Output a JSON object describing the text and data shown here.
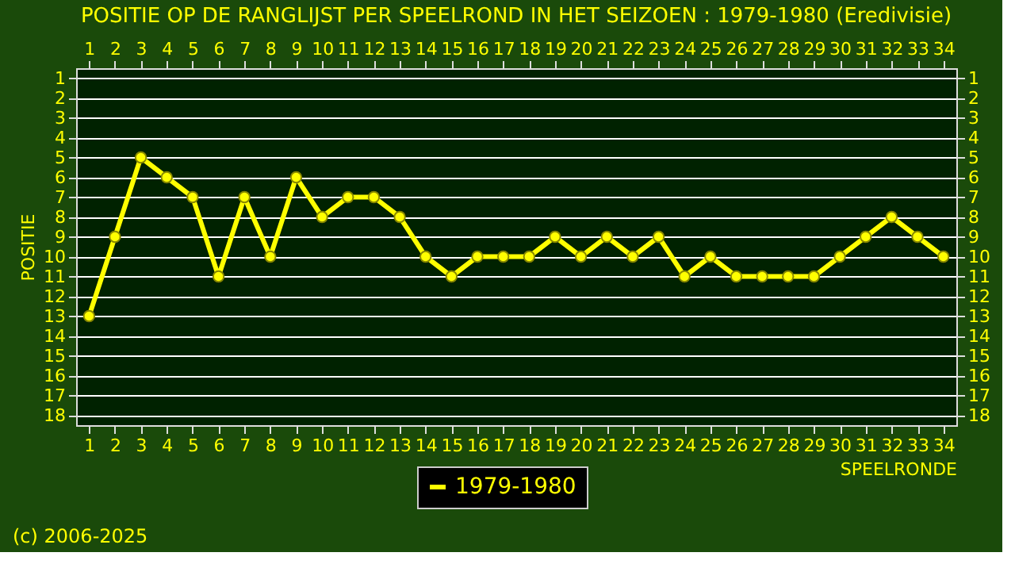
{
  "chart_data": {
    "type": "line",
    "title": "POSITIE OP DE RANGLIJST PER  SPEELROND IN HET SEIZOEN : 1979-1980 (Eredivisie)",
    "xlabel": "SPEELRONDE",
    "ylabel": "POSITIE",
    "x": [
      1,
      2,
      3,
      4,
      5,
      6,
      7,
      8,
      9,
      10,
      11,
      12,
      13,
      14,
      15,
      16,
      17,
      18,
      19,
      20,
      21,
      22,
      23,
      24,
      25,
      26,
      27,
      28,
      29,
      30,
      31,
      32,
      33,
      34
    ],
    "series": [
      {
        "name": "1979-1980",
        "color": "#ffff00",
        "values": [
          13,
          9,
          5,
          6,
          7,
          11,
          7,
          10,
          6,
          8,
          7,
          7,
          8,
          10,
          11,
          10,
          10,
          10,
          9,
          10,
          9,
          10,
          9,
          11,
          10,
          11,
          11,
          11,
          11,
          10,
          9,
          8,
          9,
          10
        ]
      }
    ],
    "xlim": [
      0.5,
      34.5
    ],
    "xticks": [
      1,
      2,
      3,
      4,
      5,
      6,
      7,
      8,
      9,
      10,
      11,
      12,
      13,
      14,
      15,
      16,
      17,
      18,
      19,
      20,
      21,
      22,
      23,
      24,
      25,
      26,
      27,
      28,
      29,
      30,
      31,
      32,
      33,
      34
    ],
    "x2lim": [
      0.5,
      34.5
    ],
    "x2ticks": [
      1,
      2,
      3,
      4,
      5,
      6,
      7,
      8,
      9,
      10,
      11,
      12,
      13,
      14,
      15,
      16,
      17,
      18,
      19,
      20,
      21,
      22,
      23,
      24,
      25,
      26,
      27,
      28,
      29,
      30,
      31,
      32,
      33,
      34
    ],
    "ylim": [
      18.5,
      0.5
    ],
    "yticks": [
      1,
      2,
      3,
      4,
      5,
      6,
      7,
      8,
      9,
      10,
      11,
      12,
      13,
      14,
      15,
      16,
      17,
      18
    ],
    "y2lim": [
      18.5,
      0.5
    ],
    "y2ticks": [
      1,
      2,
      3,
      4,
      5,
      6,
      7,
      8,
      9,
      10,
      11,
      12,
      13,
      14,
      15,
      16,
      17,
      18
    ],
    "grid": "y",
    "legend": "bottom",
    "marker": "circle",
    "line_style": "solid",
    "annotations": [
      "(c) 2006-2025"
    ]
  }
}
